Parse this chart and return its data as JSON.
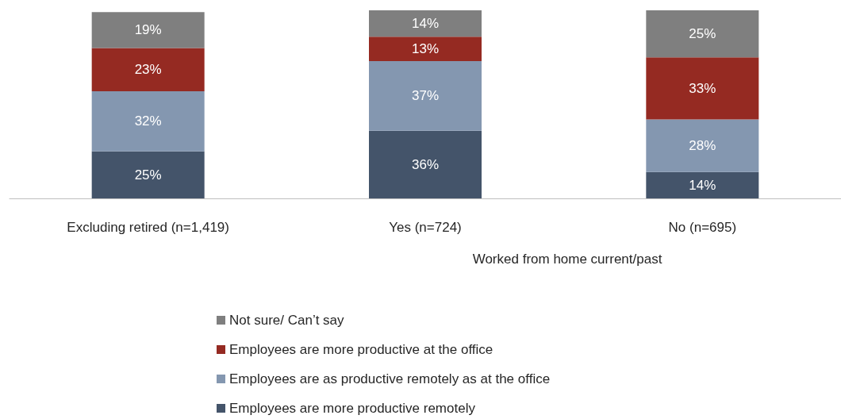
{
  "chart_data": {
    "type": "bar",
    "stacked": true,
    "legend": "bottom",
    "categories": [
      "Excluding retired (n=1,419)",
      "Yes (n=724)",
      "No (n=695)"
    ],
    "series": [
      {
        "name": "Employees are more productive remotely",
        "color": "#44546a",
        "values": [
          25,
          36,
          14
        ],
        "value_labels": [
          "25%",
          "36%",
          "14%"
        ]
      },
      {
        "name": "Employees are as productive remotely as at the office",
        "color": "#8497b0",
        "values": [
          32,
          37,
          28
        ],
        "value_labels": [
          "32%",
          "37%",
          "28%"
        ]
      },
      {
        "name": "Employees are more productive at the office",
        "color": "#952a22",
        "values": [
          23,
          13,
          33
        ],
        "value_labels": [
          "23%",
          "13%",
          "33%"
        ]
      },
      {
        "name": "Not sure/ Can’t say",
        "color": "#7f7f7f",
        "values": [
          19,
          14,
          25
        ],
        "value_labels": [
          "19%",
          "14%",
          "25%"
        ]
      }
    ],
    "annotations": [
      "Worked from home current/past"
    ]
  }
}
